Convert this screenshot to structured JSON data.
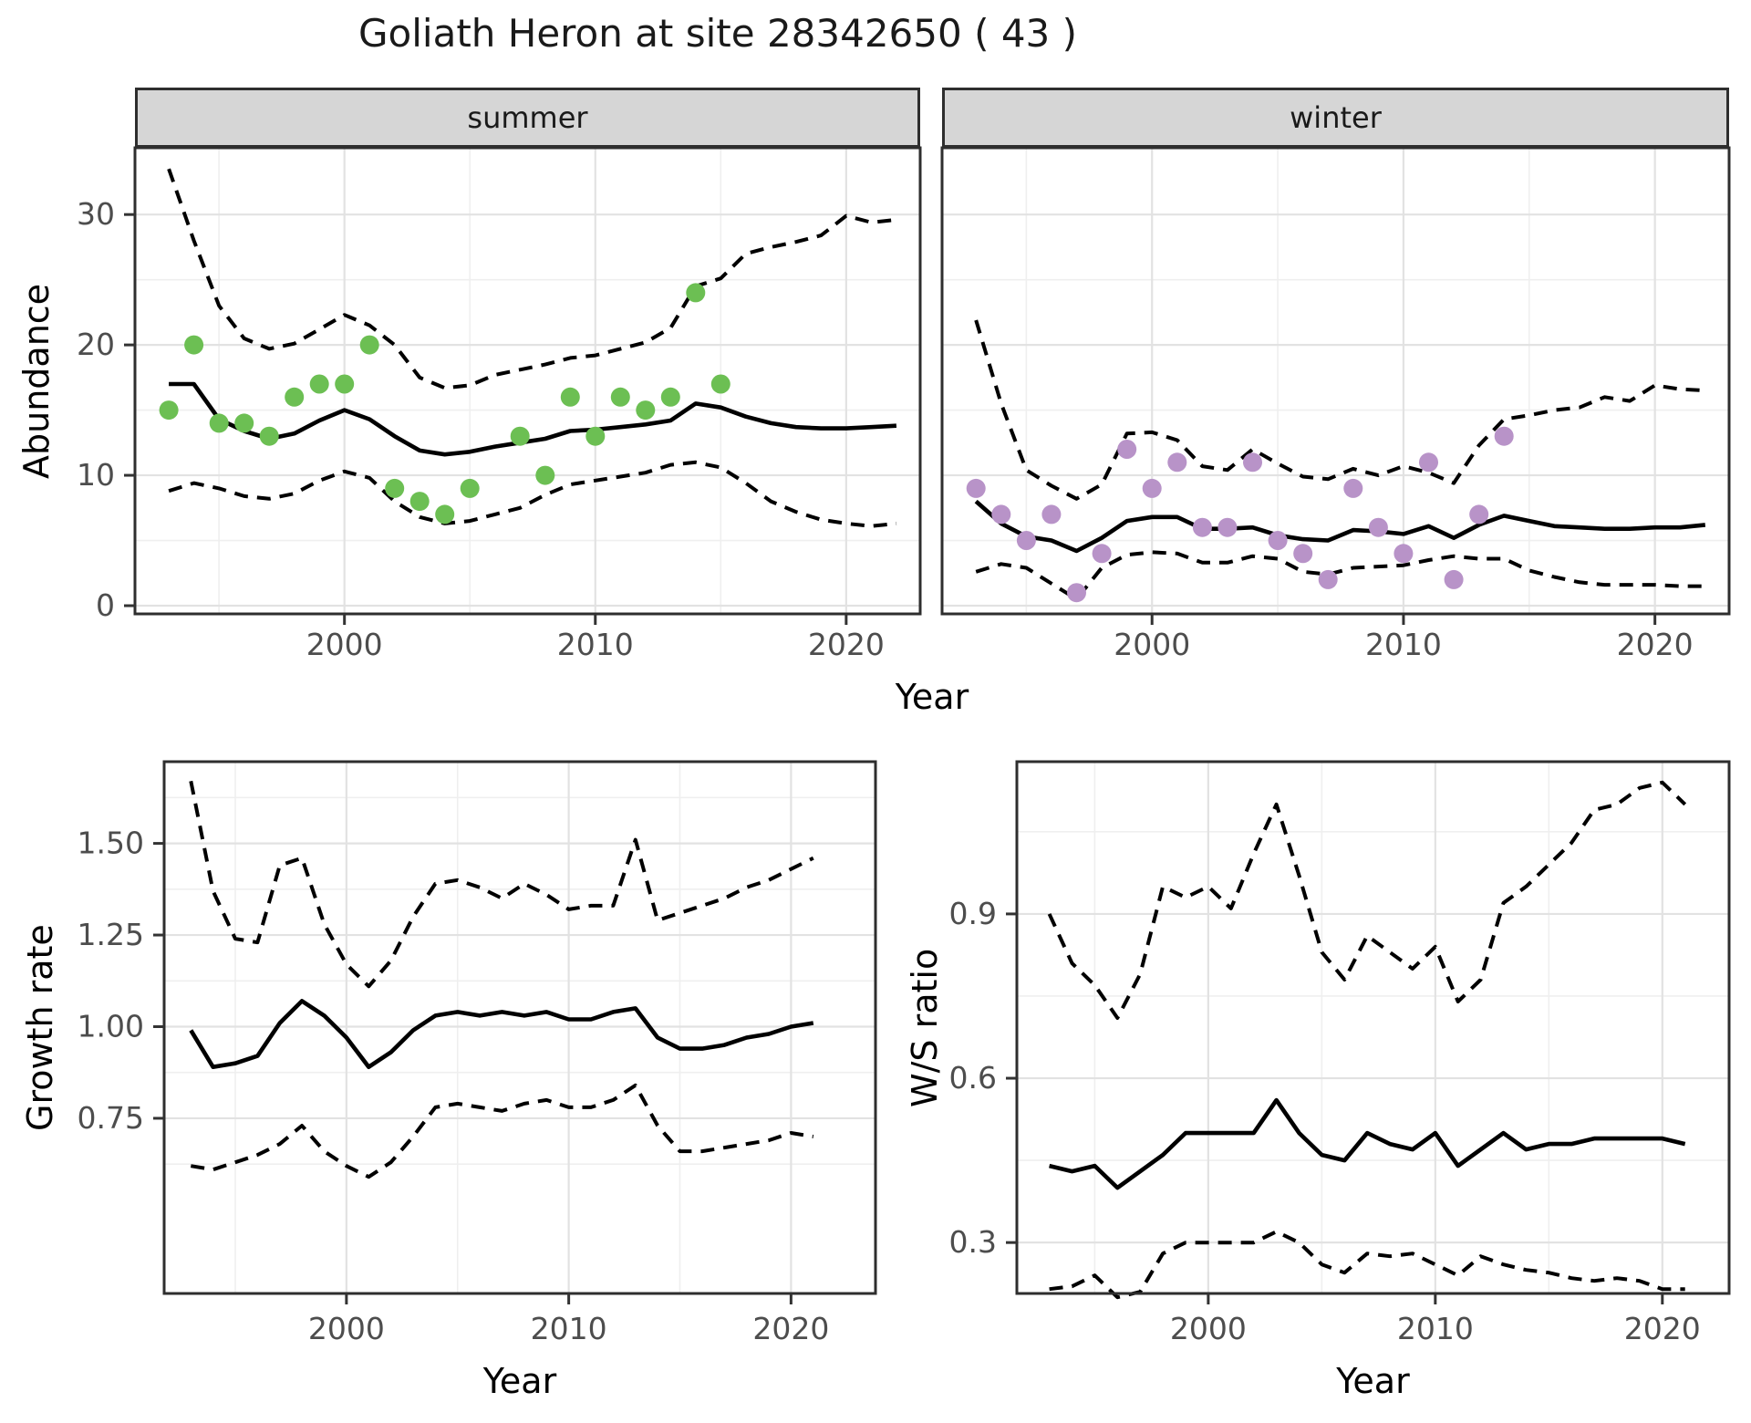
{
  "title": "Goliath Heron at site 28342650 ( 43 )",
  "axes": {
    "x_title": "Year"
  },
  "colors": {
    "summer_points": "#6cbf53",
    "winter_points": "#b893c8",
    "line": "#000000",
    "grid_major": "#e2e2e2",
    "grid_minor": "#efefef",
    "panel_border": "#2e2e2e",
    "strip_bg": "#d6d6d6",
    "axis_text": "#4d4d4d"
  },
  "chart_data": [
    {
      "id": "abundance-summer",
      "type": "line",
      "facet": "summer",
      "ylabel": "Abundance",
      "xlabel": "Year",
      "xlim": [
        1991.65,
        2022.95
      ],
      "ylim": [
        -0.63,
        35.12
      ],
      "xticks": [
        2000,
        2010,
        2020
      ],
      "xtick_labels": [
        "2000",
        "2010",
        "2020"
      ],
      "xticks_minor": [
        1995,
        2005,
        2015
      ],
      "yticks": [
        0,
        10,
        20,
        30
      ],
      "ytick_labels": [
        "0",
        "10",
        "20",
        "30"
      ],
      "yticks_minor": [
        5,
        15,
        25
      ],
      "x": [
        1993,
        1994,
        1995,
        1996,
        1997,
        1998,
        1999,
        2000,
        2001,
        2002,
        2003,
        2004,
        2005,
        2006,
        2007,
        2008,
        2009,
        2010,
        2011,
        2012,
        2013,
        2014,
        2015,
        2016,
        2017,
        2018,
        2019,
        2020,
        2021,
        2022
      ],
      "series": [
        {
          "name": "mean",
          "style": "solid",
          "values": [
            17.0,
            17.0,
            14.3,
            13.4,
            12.8,
            13.2,
            14.2,
            15.0,
            14.3,
            13.0,
            11.9,
            11.6,
            11.8,
            12.2,
            12.5,
            12.8,
            13.4,
            13.5,
            13.7,
            13.9,
            14.2,
            15.5,
            15.2,
            14.5,
            14.0,
            13.7,
            13.6,
            13.6,
            13.7,
            13.8
          ]
        },
        {
          "name": "upper_ci",
          "style": "dashed",
          "values": [
            33.5,
            28.0,
            23.0,
            20.5,
            19.7,
            20.1,
            21.2,
            22.3,
            21.5,
            20.0,
            17.5,
            16.7,
            16.9,
            17.7,
            18.1,
            18.5,
            19.0,
            19.2,
            19.7,
            20.2,
            21.3,
            24.5,
            25.1,
            27.0,
            27.5,
            27.9,
            28.4,
            29.9,
            29.4,
            29.6
          ]
        },
        {
          "name": "lower_ci",
          "style": "dashed",
          "values": [
            8.8,
            9.4,
            9.0,
            8.4,
            8.2,
            8.6,
            9.6,
            10.3,
            9.8,
            8.0,
            6.8,
            6.3,
            6.5,
            7.0,
            7.5,
            8.5,
            9.3,
            9.6,
            9.9,
            10.2,
            10.8,
            11.0,
            10.6,
            9.4,
            8.0,
            7.2,
            6.6,
            6.3,
            6.1,
            6.3
          ]
        }
      ],
      "points": {
        "name": "observations",
        "color": "#6cbf53",
        "x": [
          1993,
          1994,
          1995,
          1996,
          1997,
          1998,
          1999,
          2000,
          2001,
          2002,
          2003,
          2004,
          2005,
          2007,
          2008,
          2009,
          2010,
          2011,
          2012,
          2013,
          2014,
          2015
        ],
        "y": [
          15,
          20,
          14,
          14,
          13,
          16,
          17,
          17,
          20,
          9,
          8,
          7,
          9,
          13,
          10,
          16,
          13,
          16,
          15,
          16,
          24,
          17
        ]
      }
    },
    {
      "id": "abundance-winter",
      "type": "line",
      "facet": "winter",
      "ylabel": "Abundance",
      "xlabel": "Year",
      "xlim": [
        1991.65,
        2022.95
      ],
      "ylim": [
        -0.63,
        35.12
      ],
      "xticks": [
        2000,
        2010,
        2020
      ],
      "xtick_labels": [
        "2000",
        "2010",
        "2020"
      ],
      "xticks_minor": [
        1995,
        2005,
        2015
      ],
      "yticks": [
        0,
        10,
        20,
        30
      ],
      "ytick_labels": [
        "0",
        "10",
        "20",
        "30"
      ],
      "yticks_minor": [
        5,
        15,
        25
      ],
      "x": [
        1993,
        1994,
        1995,
        1996,
        1997,
        1998,
        1999,
        2000,
        2001,
        2002,
        2003,
        2004,
        2005,
        2006,
        2007,
        2008,
        2009,
        2010,
        2011,
        2012,
        2013,
        2014,
        2015,
        2016,
        2017,
        2018,
        2019,
        2020,
        2021,
        2022
      ],
      "series": [
        {
          "name": "mean",
          "style": "solid",
          "values": [
            8.0,
            6.3,
            5.3,
            5.0,
            4.2,
            5.2,
            6.5,
            6.8,
            6.8,
            5.9,
            5.9,
            6.0,
            5.4,
            5.1,
            5.0,
            5.8,
            5.7,
            5.5,
            6.1,
            5.2,
            6.2,
            6.9,
            6.5,
            6.1,
            6.0,
            5.9,
            5.9,
            6.0,
            6.0,
            6.2
          ]
        },
        {
          "name": "upper_ci",
          "style": "dashed",
          "values": [
            21.9,
            15.5,
            10.4,
            9.2,
            8.2,
            9.3,
            13.2,
            13.3,
            12.7,
            10.7,
            10.4,
            12.0,
            10.9,
            9.9,
            9.7,
            10.5,
            10.0,
            10.7,
            10.2,
            9.4,
            12.3,
            14.3,
            14.6,
            15.0,
            15.2,
            16.0,
            15.7,
            16.9,
            16.6,
            16.5
          ]
        },
        {
          "name": "lower_ci",
          "style": "dashed",
          "values": [
            2.6,
            3.2,
            2.9,
            1.7,
            0.5,
            2.9,
            3.9,
            4.1,
            4.0,
            3.3,
            3.3,
            3.8,
            3.6,
            2.6,
            2.4,
            2.9,
            3.0,
            3.1,
            3.5,
            3.8,
            3.6,
            3.6,
            2.7,
            2.2,
            1.8,
            1.6,
            1.6,
            1.6,
            1.5,
            1.5
          ]
        }
      ],
      "points": {
        "name": "observations",
        "color": "#b893c8",
        "x": [
          1993,
          1994,
          1995,
          1996,
          1997,
          1998,
          1999,
          2000,
          2001,
          2002,
          2003,
          2004,
          2005,
          2006,
          2007,
          2008,
          2009,
          2010,
          2011,
          2012,
          2013,
          2014
        ],
        "y": [
          9,
          7,
          5,
          7,
          1,
          4,
          12,
          9,
          11,
          6,
          6,
          11,
          5,
          4,
          2,
          9,
          6,
          4,
          11,
          2,
          7,
          13
        ]
      }
    },
    {
      "id": "growth-rate",
      "type": "line",
      "facet": "",
      "ylabel": "Growth rate",
      "xlabel": "Year",
      "xlim": [
        1991.8,
        2023.8
      ],
      "ylim": [
        0.272,
        1.723
      ],
      "xticks": [
        2000,
        2010,
        2020
      ],
      "xtick_labels": [
        "2000",
        "2010",
        "2020"
      ],
      "xticks_minor": [
        1995,
        2005,
        2015
      ],
      "yticks": [
        0.75,
        1.0,
        1.25,
        1.5
      ],
      "ytick_labels": [
        "0.75",
        "1.00",
        "1.25",
        "1.50"
      ],
      "yticks_minor": [
        0.625,
        0.875,
        1.125,
        1.375,
        1.625
      ],
      "x": [
        1993,
        1994,
        1995,
        1996,
        1997,
        1998,
        1999,
        2000,
        2001,
        2002,
        2003,
        2004,
        2005,
        2006,
        2007,
        2008,
        2009,
        2010,
        2011,
        2012,
        2013,
        2014,
        2015,
        2016,
        2017,
        2018,
        2019,
        2020,
        2021
      ],
      "series": [
        {
          "name": "mean",
          "style": "solid",
          "values": [
            0.99,
            0.89,
            0.9,
            0.92,
            1.01,
            1.07,
            1.03,
            0.97,
            0.89,
            0.93,
            0.99,
            1.03,
            1.04,
            1.03,
            1.04,
            1.03,
            1.04,
            1.02,
            1.02,
            1.04,
            1.05,
            0.97,
            0.94,
            0.94,
            0.95,
            0.97,
            0.98,
            1.0,
            1.01
          ]
        },
        {
          "name": "upper_ci",
          "style": "dashed",
          "values": [
            1.67,
            1.37,
            1.24,
            1.23,
            1.44,
            1.46,
            1.28,
            1.17,
            1.11,
            1.18,
            1.3,
            1.39,
            1.4,
            1.38,
            1.35,
            1.39,
            1.36,
            1.32,
            1.33,
            1.33,
            1.51,
            1.29,
            1.31,
            1.33,
            1.35,
            1.38,
            1.4,
            1.43,
            1.46
          ]
        },
        {
          "name": "lower_ci",
          "style": "dashed",
          "values": [
            0.62,
            0.61,
            0.63,
            0.65,
            0.68,
            0.73,
            0.66,
            0.62,
            0.59,
            0.63,
            0.7,
            0.78,
            0.79,
            0.78,
            0.77,
            0.79,
            0.8,
            0.78,
            0.78,
            0.8,
            0.84,
            0.73,
            0.66,
            0.66,
            0.67,
            0.68,
            0.69,
            0.71,
            0.7
          ]
        }
      ],
      "points": null
    },
    {
      "id": "ws-ratio",
      "type": "line",
      "facet": "",
      "ylabel": "W/S ratio",
      "xlabel": "Year",
      "xlim": [
        1991.57,
        2022.94
      ],
      "ylim": [
        0.207,
        1.178
      ],
      "xticks": [
        2000,
        2010,
        2020
      ],
      "xtick_labels": [
        "2000",
        "2010",
        "2020"
      ],
      "xticks_minor": [
        1995,
        2005,
        2015
      ],
      "yticks": [
        0.3,
        0.6,
        0.9
      ],
      "ytick_labels": [
        "0.3",
        "0.6",
        "0.9"
      ],
      "yticks_minor": [
        0.45,
        0.75,
        1.05
      ],
      "x": [
        1993,
        1994,
        1995,
        1996,
        1997,
        1998,
        1999,
        2000,
        2001,
        2002,
        2003,
        2004,
        2005,
        2006,
        2007,
        2008,
        2009,
        2010,
        2011,
        2012,
        2013,
        2014,
        2015,
        2016,
        2017,
        2018,
        2019,
        2020,
        2021
      ],
      "series": [
        {
          "name": "mean",
          "style": "solid",
          "values": [
            0.44,
            0.43,
            0.44,
            0.4,
            0.43,
            0.46,
            0.5,
            0.5,
            0.5,
            0.5,
            0.56,
            0.5,
            0.46,
            0.45,
            0.5,
            0.48,
            0.47,
            0.5,
            0.44,
            0.47,
            0.5,
            0.47,
            0.48,
            0.48,
            0.49,
            0.49,
            0.49,
            0.49,
            0.48
          ]
        },
        {
          "name": "upper_ci",
          "style": "dashed",
          "values": [
            0.9,
            0.81,
            0.77,
            0.71,
            0.79,
            0.95,
            0.93,
            0.95,
            0.91,
            1.01,
            1.1,
            0.97,
            0.83,
            0.78,
            0.86,
            0.83,
            0.8,
            0.84,
            0.74,
            0.78,
            0.92,
            0.95,
            0.99,
            1.03,
            1.09,
            1.1,
            1.13,
            1.14,
            1.1
          ]
        },
        {
          "name": "lower_ci",
          "style": "dashed",
          "values": [
            0.215,
            0.22,
            0.24,
            0.2,
            0.21,
            0.28,
            0.3,
            0.3,
            0.3,
            0.3,
            0.32,
            0.3,
            0.26,
            0.245,
            0.28,
            0.275,
            0.28,
            0.26,
            0.24,
            0.275,
            0.26,
            0.25,
            0.245,
            0.235,
            0.23,
            0.235,
            0.23,
            0.215,
            0.215
          ]
        }
      ],
      "points": null
    }
  ]
}
